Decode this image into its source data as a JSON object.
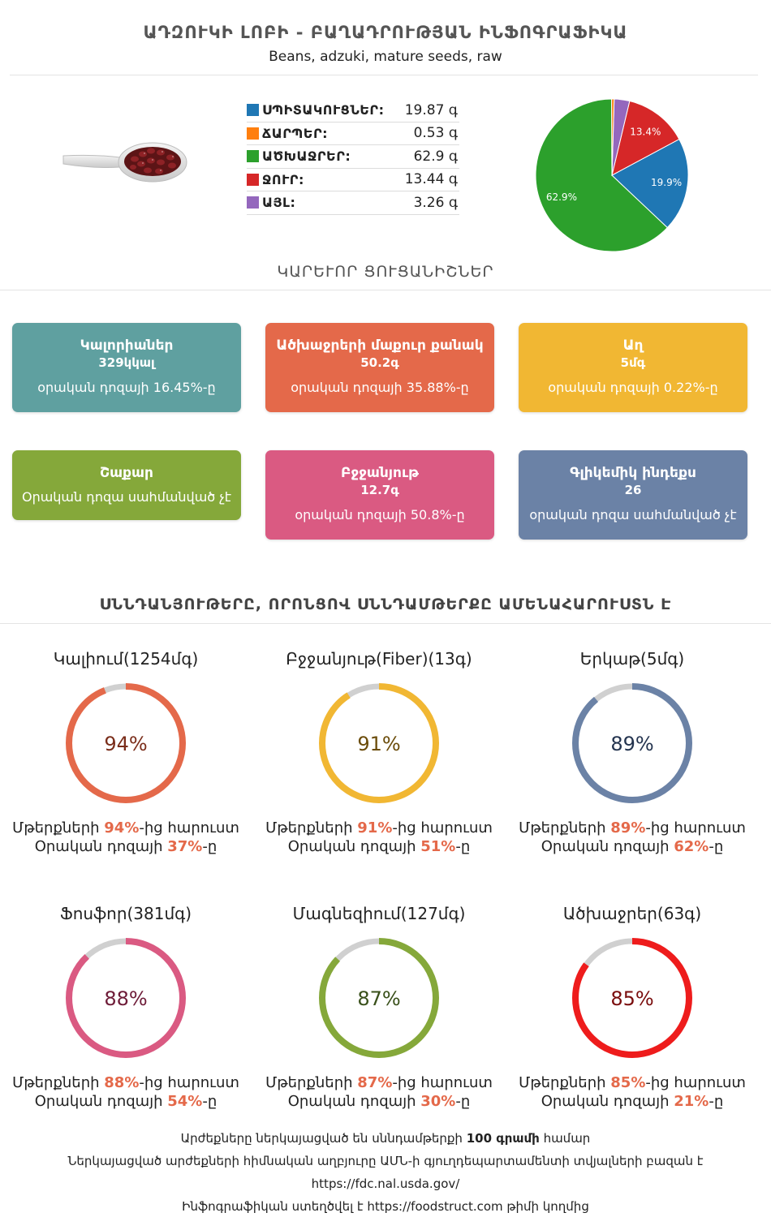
{
  "header": {
    "title": "ԱԴԶՈՒԿԻ ԼՈԲԻ - ԲԱՂԱԴՐՈՒԹՅԱՆ ԻՆՖՈԳՐԱՖԻԿԱ",
    "subtitle": "Beans, adzuki, mature seeds, raw"
  },
  "composition": {
    "items": [
      {
        "label": "ՍՊԻՏԱԿՈՒՑՆԵՐ:",
        "value": "19.87 գ",
        "color": "#1f77b4"
      },
      {
        "label": "ՃԱՐՊԵՐ:",
        "value": "0.53 գ",
        "color": "#ff7f0e"
      },
      {
        "label": "ԱԾԽԱՋՐԵՐ:",
        "value": "62.9 գ",
        "color": "#2ca02c"
      },
      {
        "label": "ՋՈՒՐ:",
        "value": "13.44 գ",
        "color": "#d62728"
      },
      {
        "label": "ԱՅԼ:",
        "value": "3.26 գ",
        "color": "#9467bd"
      }
    ]
  },
  "chart_data": {
    "type": "pie",
    "slices": [
      {
        "name": "ԱԾԽԱՋՐԵՐ",
        "value": 62.9,
        "label": "62.9%",
        "color": "#2ca02c"
      },
      {
        "name": "ՍՊԻՏԱԿՈՒՑՆԵՐ",
        "value": 19.87,
        "label": "19.9%",
        "color": "#1f77b4"
      },
      {
        "name": "ՋՈՒՐ",
        "value": 13.44,
        "label": "13.4%",
        "color": "#d62728"
      },
      {
        "name": "ԱՅԼ",
        "value": 3.26,
        "label": "",
        "color": "#9467bd"
      },
      {
        "name": "ՃԱՐՊԵՐ",
        "value": 0.53,
        "label": "",
        "color": "#ff7f0e"
      }
    ]
  },
  "key_section": {
    "title": "ԿԱՐԵՒՈՐ ՑՈՒՑԱՆԻՇՆԵՐ"
  },
  "cards": [
    {
      "title": "Կալորիաներ",
      "value": "329կկալ",
      "sub": "օրական դոզայի 16.45%-ը",
      "color": "#5fa0a0"
    },
    {
      "title": "Ածխաջրերի մաքուր քանակ",
      "value": "50.2գ",
      "sub": "օրական դոզայի 35.88%-ը",
      "color": "#e4694a"
    },
    {
      "title": "Աղ",
      "value": "5մգ",
      "sub": "օրական դոզայի 0.22%-ը",
      "color": "#f1b733"
    },
    {
      "title": "Շաքար",
      "value": "",
      "sub": "Օրական դոզա սահմանված չէ",
      "color": "#85a83a"
    },
    {
      "title": "Բջջանյութ",
      "value": "12.7գ",
      "sub": "օրական դոզայի 50.8%-ը",
      "color": "#da5a82"
    },
    {
      "title": "Գլիկեմիկ ինդեքս",
      "value": "26",
      "sub": "օրական դոզա սահմանված չէ",
      "color": "#6b82a6"
    }
  ],
  "nutrients_section": {
    "title": "ՍՆՆԴԱՆՅՈՒԹԵՐԸ, ՈՐՈՆՑՈՎ ՍՆՆԴԱՄԹԵՐՔԸ ԱՄԵՆԱՀԱՐՈՒՍՏՆ Է"
  },
  "rings": [
    {
      "title": "Կալիում(1254մգ)",
      "percent": 94,
      "percent_label": "94%",
      "daily_label": "37%",
      "color": "#e4694a",
      "text_color": "#7a2d1a"
    },
    {
      "title": "Բջջանյութ(Fiber)(13գ)",
      "percent": 91,
      "percent_label": "91%",
      "daily_label": "51%",
      "color": "#f1b733",
      "text_color": "#6b4c0a"
    },
    {
      "title": "Երկաթ(5մգ)",
      "percent": 89,
      "percent_label": "89%",
      "daily_label": "62%",
      "color": "#6b82a6",
      "text_color": "#24344f"
    },
    {
      "title": "Ֆոսֆոր(381մգ)",
      "percent": 88,
      "percent_label": "88%",
      "daily_label": "54%",
      "color": "#da5a82",
      "text_color": "#6e1c38"
    },
    {
      "title": "Մագնեզիում(127մգ)",
      "percent": 87,
      "percent_label": "87%",
      "daily_label": "30%",
      "color": "#85a83a",
      "text_color": "#39501a"
    },
    {
      "title": "Ածխաջրեր(63գ)",
      "percent": 85,
      "percent_label": "85%",
      "daily_label": "21%",
      "color": "#ee1c1c",
      "text_color": "#7a0d0d"
    }
  ],
  "ring_text": {
    "line1_prefix": "Մթերքների ",
    "line1_suffix": "-ից հարուստ",
    "line2_prefix": "Օրական դոզայի ",
    "line2_suffix": "-ը",
    "highlight_color": "#e4694a",
    "track_color": "#d0d0d0"
  },
  "footer": {
    "line1_prefix": "Արժեքները ներկայացված են սննդամթերքի ",
    "line1_bold": "100 գրամի",
    "line1_suffix": " համար",
    "line2": "Ներկայացված արժեքների հիմնական աղբյուրը ԱՄՆ-ի գյուղդեպարտամենտի տվյալների բազան է",
    "line3": "https://fdc.nal.usda.gov/",
    "line4_prefix": "Ինֆոգրաֆիկան ստեղծվել է ",
    "line4_link": "https://foodstruct.com",
    "line4_suffix": " թիմի կողմից"
  }
}
